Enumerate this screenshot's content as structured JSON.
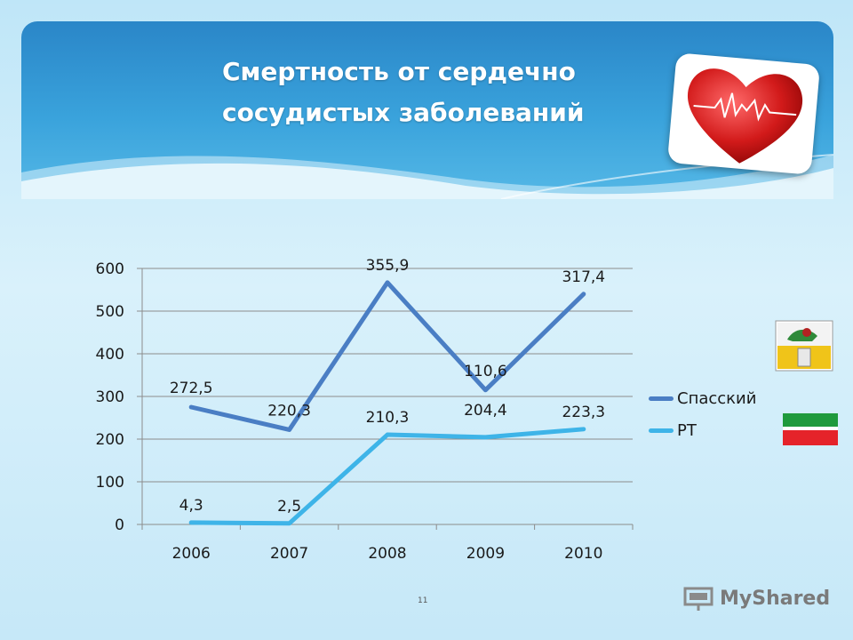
{
  "slide": {
    "title_line1": "Смертность от сердечно",
    "title_line2": "сосудистых заболеваний",
    "page_number": "11",
    "watermark": "MyShared",
    "colors": {
      "header": "#3aa3dc",
      "accent": "#2a86c8"
    }
  },
  "chart_data": {
    "type": "line",
    "categories": [
      "2006",
      "2007",
      "2008",
      "2009",
      "2010"
    ],
    "ylim": [
      0,
      600
    ],
    "yticks": [
      "0",
      "100",
      "200",
      "300",
      "400",
      "500",
      "600"
    ],
    "grid": true,
    "legend_position": "right",
    "series": [
      {
        "name": "Спасский",
        "color": "#4a7ec4",
        "values": [
          275,
          222,
          567,
          315,
          540
        ],
        "labels": [
          "272,5",
          "220,3",
          "355,9",
          "110,6",
          "317,4"
        ]
      },
      {
        "name": "РТ",
        "color": "#3eb4e8",
        "values": [
          4.3,
          2.5,
          210.3,
          204.4,
          223.3
        ],
        "labels": [
          "4,3",
          "2,5",
          "210,3",
          "204,4",
          "223,3"
        ]
      }
    ]
  }
}
